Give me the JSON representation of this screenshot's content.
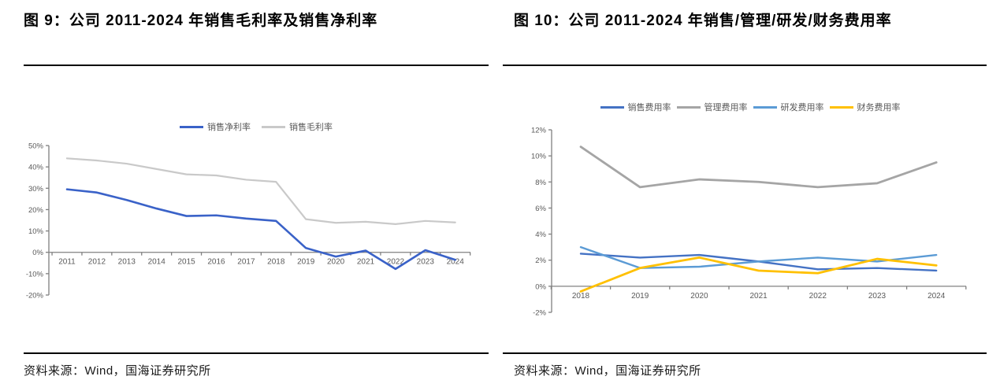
{
  "panels": [
    {
      "figure_label": "图 9：",
      "title": "公司 2011-2024 年销售毛利率及销售净利率",
      "source": "资料来源：Wind，国海证券研究所"
    },
    {
      "figure_label": "图 10：",
      "title": "公司 2011-2024 年销售/管理/研发/财务费用率",
      "source": "资料来源：Wind，国海证券研究所"
    }
  ],
  "colors": {
    "net_margin_blue": "#3A62C8",
    "gross_margin_gray": "#C9C9C9",
    "selling_expense_blue": "#4472C4",
    "admin_expense_gray": "#A5A5A5",
    "rd_expense_lightblue": "#5B9BD5",
    "finance_expense_yellow": "#FFC000",
    "axis": "#808080",
    "tick_label": "#595959"
  },
  "chart_data": [
    {
      "type": "line",
      "title": "公司 2011-2024 年销售毛利率及销售净利率",
      "x": [
        2011,
        2012,
        2013,
        2014,
        2015,
        2016,
        2017,
        2018,
        2019,
        2020,
        2021,
        2022,
        2023,
        2024
      ],
      "series": [
        {
          "name": "销售净利率",
          "color": "#3A62C8",
          "width": 2.6,
          "values": [
            29.5,
            28.0,
            24.5,
            20.5,
            17.0,
            17.3,
            15.8,
            14.7,
            2.0,
            -2.0,
            0.8,
            -7.8,
            1.0,
            -3.5
          ]
        },
        {
          "name": "销售毛利率",
          "color": "#C9C9C9",
          "width": 2.2,
          "values": [
            44.0,
            43.0,
            41.5,
            39.0,
            36.5,
            36.0,
            34.0,
            33.0,
            15.5,
            13.8,
            14.3,
            13.2,
            14.7,
            14.0
          ]
        }
      ],
      "ylim": [
        -20,
        50
      ],
      "ytick_step": 10,
      "ytick_suffix": "%",
      "grid": false,
      "legend_position": "top"
    },
    {
      "type": "line",
      "title": "公司 2011-2024 年销售/管理/研发/财务费用率",
      "x": [
        2018,
        2019,
        2020,
        2021,
        2022,
        2023,
        2024
      ],
      "series": [
        {
          "name": "销售费用率",
          "color": "#4472C4",
          "width": 2.4,
          "values": [
            2.5,
            2.2,
            2.4,
            1.9,
            1.3,
            1.4,
            1.2
          ]
        },
        {
          "name": "管理费用率",
          "color": "#A5A5A5",
          "width": 2.8,
          "values": [
            10.7,
            7.6,
            8.2,
            8.0,
            7.6,
            7.9,
            9.5
          ]
        },
        {
          "name": "研发费用率",
          "color": "#5B9BD5",
          "width": 2.4,
          "values": [
            3.0,
            1.4,
            1.5,
            1.9,
            2.2,
            1.9,
            2.4
          ]
        },
        {
          "name": "财务费用率",
          "color": "#FFC000",
          "width": 2.8,
          "values": [
            -0.4,
            1.4,
            2.2,
            1.2,
            1.0,
            2.1,
            1.6
          ]
        }
      ],
      "ylim": [
        -2,
        12
      ],
      "ytick_step": 2,
      "ytick_suffix": "%",
      "grid": false,
      "legend_position": "top"
    }
  ]
}
